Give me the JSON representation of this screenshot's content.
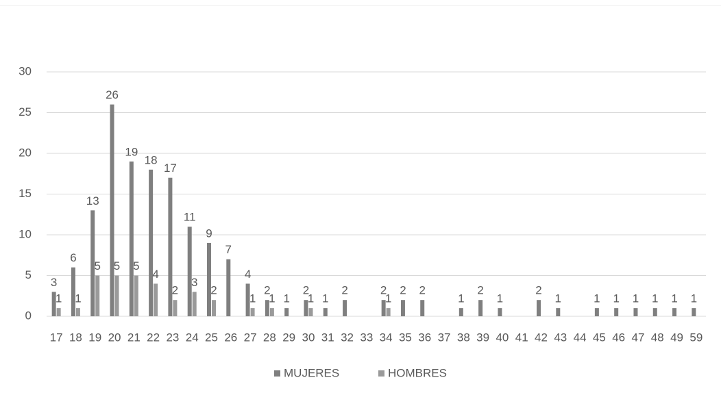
{
  "chart_data": {
    "type": "bar",
    "categories": [
      "17",
      "18",
      "19",
      "20",
      "21",
      "22",
      "23",
      "24",
      "25",
      "26",
      "27",
      "28",
      "29",
      "30",
      "31",
      "32",
      "33",
      "34",
      "35",
      "36",
      "37",
      "38",
      "39",
      "40",
      "41",
      "42",
      "43",
      "44",
      "45",
      "46",
      "47",
      "48",
      "49",
      "59"
    ],
    "series": [
      {
        "name": "MUJERES",
        "color": "#7f7f7f",
        "values": [
          3,
          6,
          13,
          26,
          19,
          18,
          17,
          11,
          9,
          7,
          4,
          2,
          1,
          2,
          1,
          2,
          null,
          2,
          2,
          2,
          null,
          1,
          2,
          1,
          null,
          2,
          1,
          null,
          1,
          1,
          1,
          1,
          1,
          1
        ]
      },
      {
        "name": "HOMBRES",
        "color": "#9a9a9a",
        "values": [
          1,
          1,
          5,
          5,
          5,
          4,
          2,
          3,
          2,
          null,
          1,
          1,
          null,
          1,
          null,
          null,
          null,
          1,
          null,
          null,
          null,
          null,
          null,
          null,
          null,
          null,
          null,
          null,
          null,
          null,
          null,
          null,
          null,
          null
        ]
      }
    ],
    "ylim": [
      0,
      30
    ],
    "yticks": [
      0,
      5,
      10,
      15,
      20,
      25,
      30
    ],
    "grid": true,
    "legend": "bottom"
  }
}
